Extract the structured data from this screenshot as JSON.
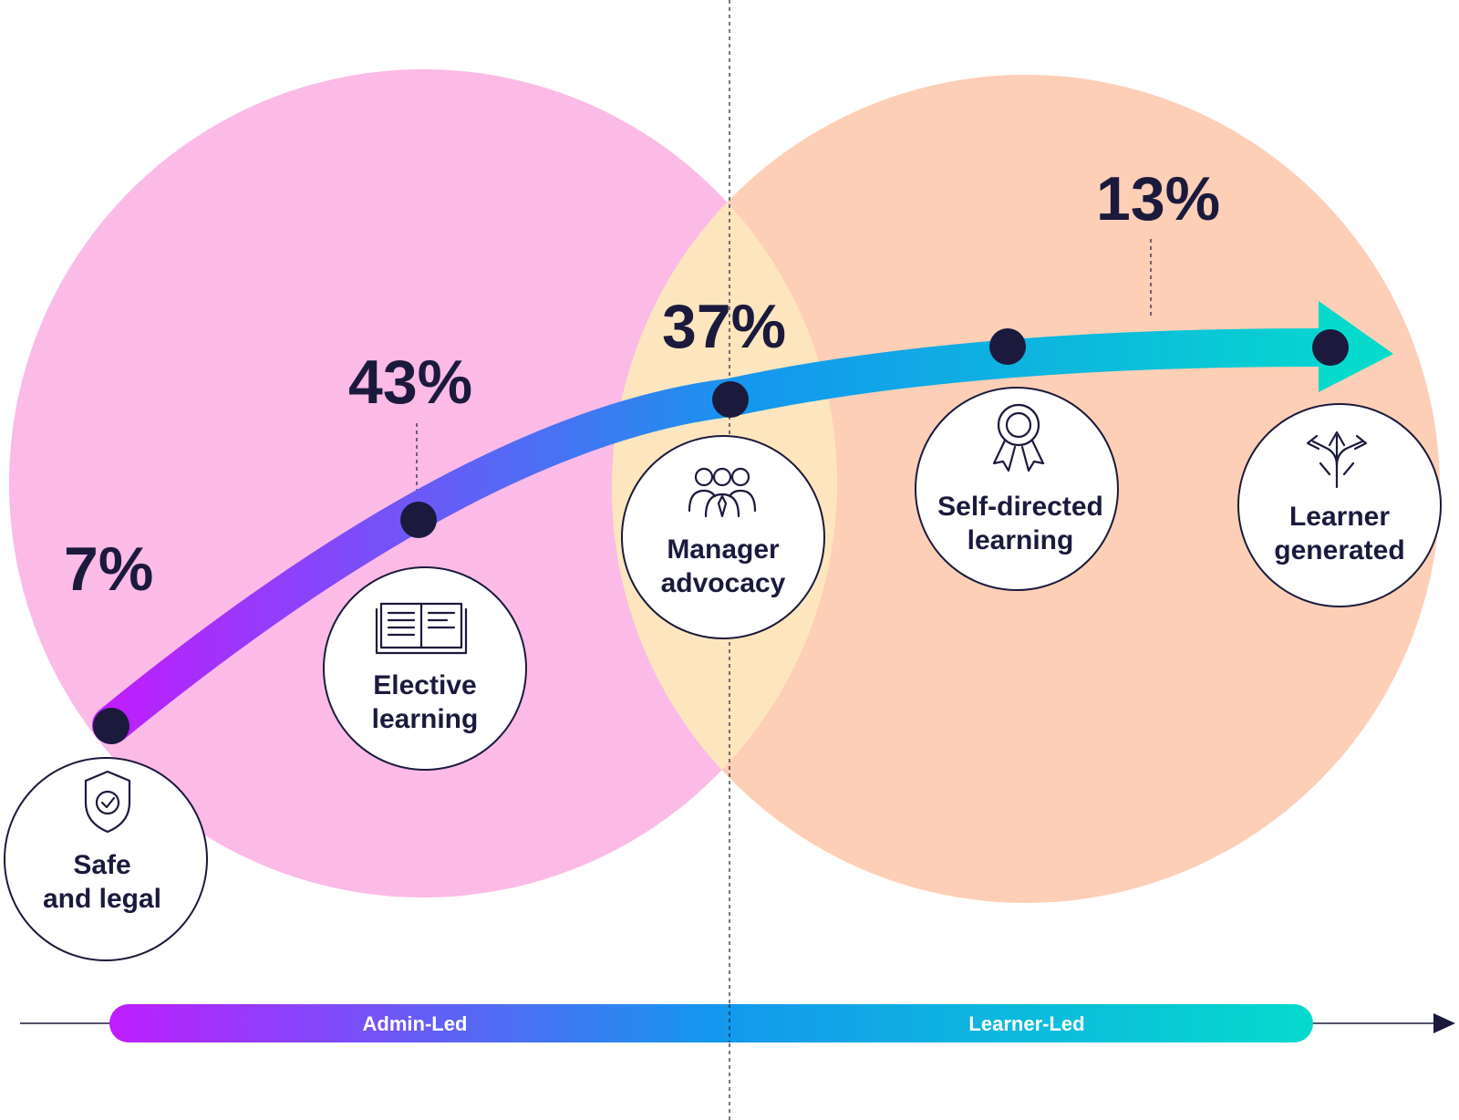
{
  "colors": {
    "admin_circle": "#fbbbe6",
    "learner_circle": "#fdcfb6",
    "overlap": "#fde6be",
    "navy": "#1b1a3d",
    "gradient_start": "#bf1dff",
    "gradient_mid": "#1497ee",
    "gradient_end": "#05dacd"
  },
  "stages": [
    {
      "id": "safe",
      "percent": "7%",
      "label_line1": "Safe",
      "label_line2": "and legal",
      "icon": "shield-check-icon"
    },
    {
      "id": "elective",
      "percent": "43%",
      "label_line1": "Elective",
      "label_line2": "learning",
      "icon": "open-book-icon"
    },
    {
      "id": "manager",
      "percent": "37%",
      "label_line1": "Manager",
      "label_line2": "advocacy",
      "icon": "team-people-icon"
    },
    {
      "id": "selfdirected",
      "percent": "13%",
      "label_line1": "Self-directed",
      "label_line2": "learning",
      "icon": "award-ribbon-icon"
    },
    {
      "id": "learnergen",
      "percent": "",
      "label_line1": "Learner",
      "label_line2": "generated",
      "icon": "branching-arrows-icon"
    }
  ],
  "axis": {
    "left_label": "Admin-Led",
    "right_label": "Learner-Led"
  }
}
